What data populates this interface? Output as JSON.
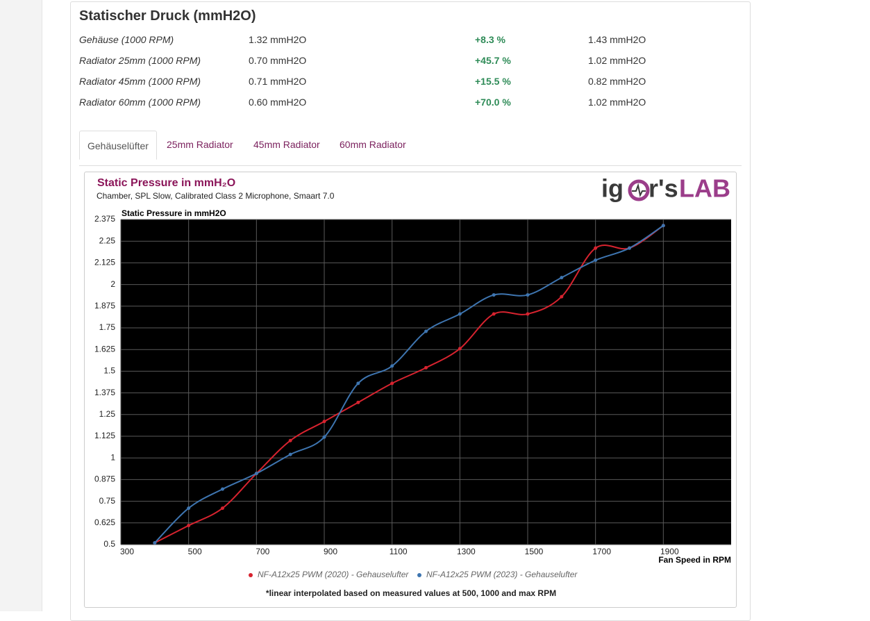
{
  "header": {
    "title": "Statischer Druck (mmH2O)"
  },
  "table": {
    "rows": [
      [
        "Gehäuse (1000 RPM)",
        "1.32 mmH2O",
        "+8.3 %",
        "1.43 mmH2O"
      ],
      [
        "Radiator 25mm (1000 RPM)",
        "0.70 mmH2O",
        "+45.7 %",
        "1.02 mmH2O"
      ],
      [
        "Radiator 45mm (1000 RPM)",
        "0.71 mmH2O",
        "+15.5 %",
        "0.82 mmH2O"
      ],
      [
        "Radiator 60mm (1000 RPM)",
        "0.60 mmH2O",
        "+70.0 %",
        "1.02 mmH2O"
      ]
    ]
  },
  "tabs": [
    "Gehäuselüfter",
    "25mm Radiator",
    "45mm Radiator",
    "60mm Radiator"
  ],
  "logo": [
    "ig",
    "r's",
    "LAB"
  ],
  "chart_data": {
    "type": "line",
    "title": "Static Pressure in mmH₂O",
    "subtitle": "Chamber, SPL Slow, Calibrated Class 2 Microphone, Smaart 7.0",
    "y_label": "Static Pressure in mmH2O",
    "x_label": "Fan Speed in RPM",
    "footnote": "*linear interpolated based on measured values at 500, 1000 and max RPM",
    "x": [
      400,
      500,
      600,
      700,
      800,
      900,
      1000,
      1100,
      1200,
      1300,
      1400,
      1500,
      1600,
      1700,
      1800,
      1900
    ],
    "series": [
      {
        "name": "NF-A12x25 PWM (2020) - Gehauselufter",
        "color": "#d7232f",
        "values": [
          0.51,
          0.61,
          0.71,
          0.91,
          1.1,
          1.21,
          1.32,
          1.43,
          1.52,
          1.63,
          1.83,
          1.83,
          1.93,
          2.21,
          2.21,
          2.34
        ]
      },
      {
        "name": "NF-A12x25 PWM (2023) - Gehauselufter",
        "color": "#3e75b0",
        "values": [
          0.51,
          0.71,
          0.82,
          0.91,
          1.02,
          1.12,
          1.43,
          1.53,
          1.73,
          1.83,
          1.94,
          1.94,
          2.04,
          2.14,
          2.21,
          2.34
        ]
      }
    ],
    "xlim": [
      300,
      2100
    ],
    "xticks": [
      300,
      500,
      700,
      900,
      1100,
      1300,
      1500,
      1700,
      1900
    ],
    "ylim": [
      0.5,
      2.375
    ],
    "yticks": [
      0.5,
      0.625,
      0.75,
      0.875,
      1,
      1.125,
      1.25,
      1.375,
      1.5,
      1.625,
      1.75,
      1.875,
      2,
      2.125,
      2.25,
      2.375
    ],
    "grid": true,
    "smooth": true
  }
}
